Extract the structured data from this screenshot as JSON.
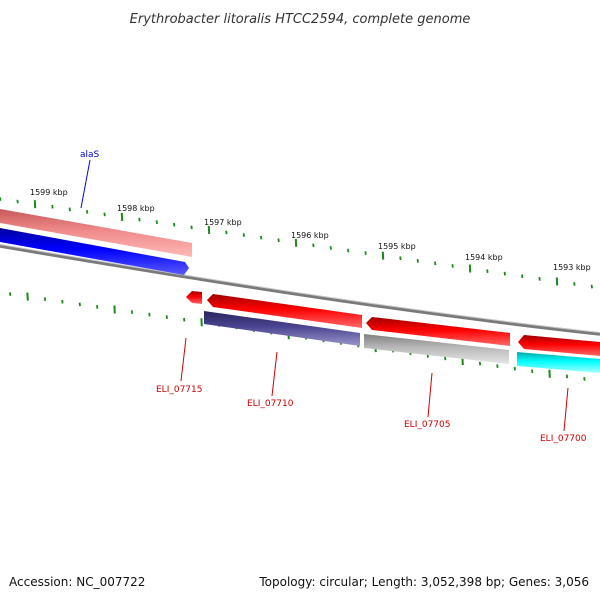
{
  "title": "Erythrobacter litoralis HTCC2594, complete genome",
  "footer": {
    "accession": "Accession: NC_007722",
    "summary": "Topology: circular; Length: 3,052,398 bp; Genes: 3,056"
  },
  "scale_labels": [
    "1599 kbp",
    "1598 kbp",
    "1597 kbp",
    "1596 kbp",
    "1595 kbp",
    "1594 kbp",
    "1593 kbp"
  ],
  "genes": [
    {
      "name": "alaS",
      "strand": "forward",
      "color": "#0000ff"
    },
    {
      "name": "ELI_07715",
      "strand": "reverse",
      "color": "#ff0000"
    },
    {
      "name": "ELI_07710",
      "strand": "reverse",
      "color": "#ff0000"
    },
    {
      "name": "ELI_07705",
      "strand": "reverse",
      "color": "#ff0000"
    },
    {
      "name": "ELI_07700",
      "strand": "reverse",
      "color": "#ff0000"
    }
  ],
  "colors": {
    "tick": "#1a8a1a",
    "backbone": "#8a8a8a",
    "forward_gene": "#0000ff",
    "reverse_gene": "#ff0000",
    "pink_feature": "#f08080",
    "navy_feature": "#4b4592",
    "gray_feature": "#b8b8b8",
    "cyan_feature": "#00ffff",
    "label_forward": "#0000cc",
    "label_reverse": "#cc0000"
  }
}
